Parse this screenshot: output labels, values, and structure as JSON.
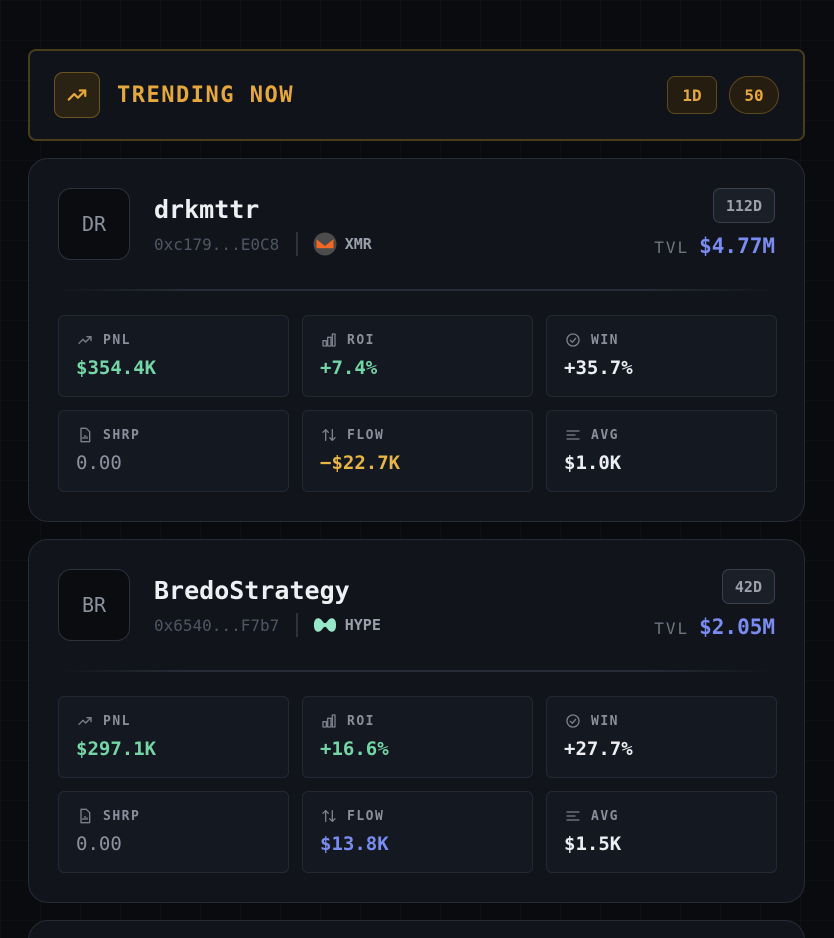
{
  "header": {
    "icon": "trending-up-icon",
    "title": "TRENDING NOW",
    "period": "1D",
    "count": "50",
    "accent": "#e6a83c"
  },
  "traders": [
    {
      "initials": "DR",
      "name": "drkmttr",
      "address": "0xc179...E0C8",
      "coin": {
        "symbol": "XMR",
        "icon": "monero-icon"
      },
      "age": "112D",
      "tvl_label": "TVL",
      "tvl": "$4.77M",
      "stats": {
        "pnl": {
          "label": "PNL",
          "value": "$354.4K",
          "tone": "positive"
        },
        "roi": {
          "label": "ROI",
          "value": "+7.4%",
          "tone": "positive"
        },
        "win": {
          "label": "WIN",
          "value": "+35.7%",
          "tone": "neutral"
        },
        "shrp": {
          "label": "SHRP",
          "value": "0.00",
          "tone": "muted"
        },
        "flow": {
          "label": "FLOW",
          "value": "−$22.7K",
          "tone": "negative"
        },
        "avg": {
          "label": "AVG",
          "value": "$1.0K",
          "tone": "neutral"
        }
      }
    },
    {
      "initials": "BR",
      "name": "BredoStrategy",
      "address": "0x6540...F7b7",
      "coin": {
        "symbol": "HYPE",
        "icon": "hyperliquid-icon"
      },
      "age": "42D",
      "tvl_label": "TVL",
      "tvl": "$2.05M",
      "stats": {
        "pnl": {
          "label": "PNL",
          "value": "$297.1K",
          "tone": "positive"
        },
        "roi": {
          "label": "ROI",
          "value": "+16.6%",
          "tone": "positive"
        },
        "win": {
          "label": "WIN",
          "value": "+27.7%",
          "tone": "neutral"
        },
        "shrp": {
          "label": "SHRP",
          "value": "0.00",
          "tone": "muted"
        },
        "flow": {
          "label": "FLOW",
          "value": "$13.8K",
          "tone": "inflow"
        },
        "avg": {
          "label": "AVG",
          "value": "$1.5K",
          "tone": "neutral"
        }
      }
    }
  ],
  "colors": {
    "positive": "#74d6a6",
    "negative": "#e9b645",
    "inflow": "#7a8cf0",
    "tvl": "#7a8cf0"
  }
}
